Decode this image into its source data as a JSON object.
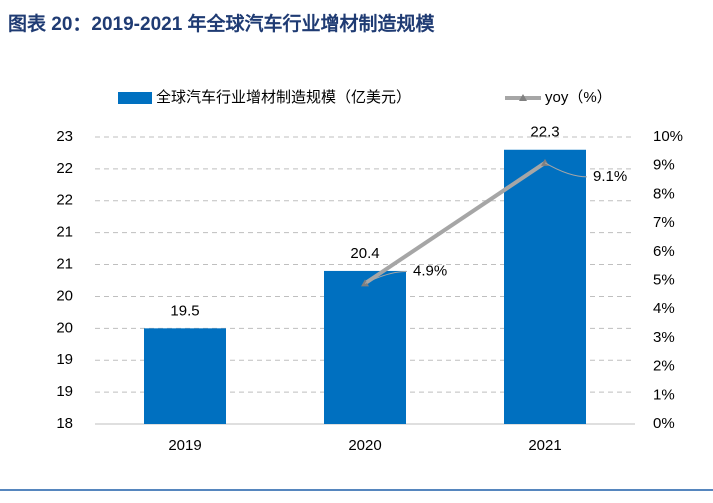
{
  "chart_data": {
    "type": "bar",
    "title": "图表 20：2019-2021 年全球汽车行业增材制造规模",
    "categories": [
      "2019",
      "2020",
      "2021"
    ],
    "series": [
      {
        "name": "全球汽车行业增材制造规模（亿美元）",
        "type": "bar",
        "color": "#0070c0",
        "values": [
          19.5,
          20.4,
          22.3
        ]
      },
      {
        "name": "yoy（%）",
        "type": "line",
        "axis": "y2",
        "color": "#a6a6a6",
        "values": [
          null,
          4.9,
          9.1
        ],
        "value_labels": [
          null,
          "4.9%",
          "9.1%"
        ]
      }
    ],
    "ylim": [
      18,
      22.5
    ],
    "yticks": [
      18,
      {
        "value": 18.5,
        "label": "19"
      },
      19,
      {
        "value": 19.5,
        "label": "20"
      },
      20,
      {
        "value": 20.5,
        "label": "21"
      },
      21,
      {
        "value": 21.5,
        "label": "22"
      },
      22,
      {
        "value": 22.5,
        "label": "23"
      }
    ],
    "y2lim": [
      0,
      10
    ],
    "y2ticks": [
      {
        "value": 0,
        "label": "0%"
      },
      {
        "value": 1,
        "label": "1%"
      },
      {
        "value": 2,
        "label": "2%"
      },
      {
        "value": 3,
        "label": "3%"
      },
      {
        "value": 4,
        "label": "4%"
      },
      {
        "value": 5,
        "label": "5%"
      },
      {
        "value": 6,
        "label": "6%"
      },
      {
        "value": 7,
        "label": "7%"
      },
      {
        "value": 8,
        "label": "8%"
      },
      {
        "value": 9,
        "label": "9%"
      },
      {
        "value": 10,
        "label": "10%"
      }
    ],
    "grid": true,
    "legend": "top"
  }
}
